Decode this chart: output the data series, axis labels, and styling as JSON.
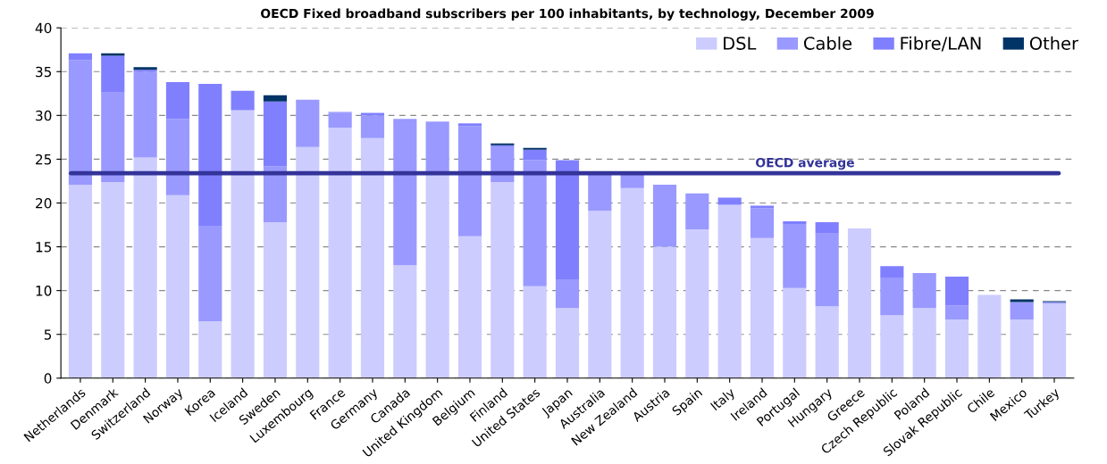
{
  "chart_data": {
    "type": "bar",
    "stacked": true,
    "title": "OECD Fixed broadband subscribers per 100 inhabitants, by technology, December 2009",
    "categories": [
      "Netherlands",
      "Denmark",
      "Switzerland",
      "Norway",
      "Korea",
      "Iceland",
      "Sweden",
      "Luxembourg",
      "France",
      "Germany",
      "Canada",
      "United Kingdom",
      "Belgium",
      "Finland",
      "United States",
      "Japan",
      "Australia",
      "New Zealand",
      "Austria",
      "Spain",
      "Italy",
      "Ireland",
      "Portugal",
      "Hungary",
      "Greece",
      "Czech Republic",
      "Poland",
      "Slovak Republic",
      "Chile",
      "Mexico",
      "Turkey"
    ],
    "series": [
      {
        "name": "DSL",
        "color": "#ccccff",
        "values": [
          22.1,
          22.4,
          25.2,
          20.9,
          6.5,
          30.6,
          17.8,
          26.4,
          28.6,
          27.4,
          12.9,
          23.2,
          16.2,
          22.4,
          10.5,
          8.0,
          19.1,
          21.7,
          15.0,
          17.0,
          19.8,
          16.0,
          10.3,
          8.2,
          17.1,
          7.2,
          8.0,
          6.7,
          9.5,
          6.7,
          8.5
        ]
      },
      {
        "name": "Cable",
        "color": "#9999ff",
        "values": [
          14.2,
          10.2,
          9.8,
          8.7,
          10.9,
          0,
          6.4,
          5.4,
          1.7,
          2.6,
          16.7,
          6.1,
          12.6,
          4.0,
          14.4,
          3.2,
          4.2,
          1.6,
          7.1,
          4.1,
          0,
          3.4,
          7.3,
          8.3,
          0,
          4.3,
          4.0,
          1.6,
          0,
          2.0,
          0.2
        ]
      },
      {
        "name": "Fibre/LAN",
        "color": "#8080ff",
        "values": [
          0.8,
          4.2,
          0.2,
          4.2,
          16.2,
          2.2,
          7.4,
          0,
          0.1,
          0.3,
          0,
          0,
          0.3,
          0.2,
          1.2,
          13.7,
          0,
          0,
          0,
          0,
          0.8,
          0.3,
          0.3,
          1.3,
          0,
          1.3,
          0,
          3.3,
          0,
          0,
          0
        ]
      },
      {
        "name": "Other",
        "color": "#003366",
        "values": [
          0,
          0.3,
          0.3,
          0,
          0,
          0,
          0.7,
          0,
          0,
          0,
          0,
          0,
          0,
          0.2,
          0.2,
          0,
          0,
          0,
          0,
          0,
          0,
          0,
          0,
          0,
          0,
          0,
          0,
          0,
          0,
          0.3,
          0.1
        ]
      }
    ],
    "ylim": [
      0,
      40
    ],
    "yticks": [
      0,
      5,
      10,
      15,
      20,
      25,
      30,
      35,
      40
    ],
    "grid": "y",
    "legend": "top right",
    "ref_lines": [
      {
        "axis": "y",
        "value": 23.4,
        "label": "OECD average",
        "color": "#333399"
      }
    ]
  }
}
